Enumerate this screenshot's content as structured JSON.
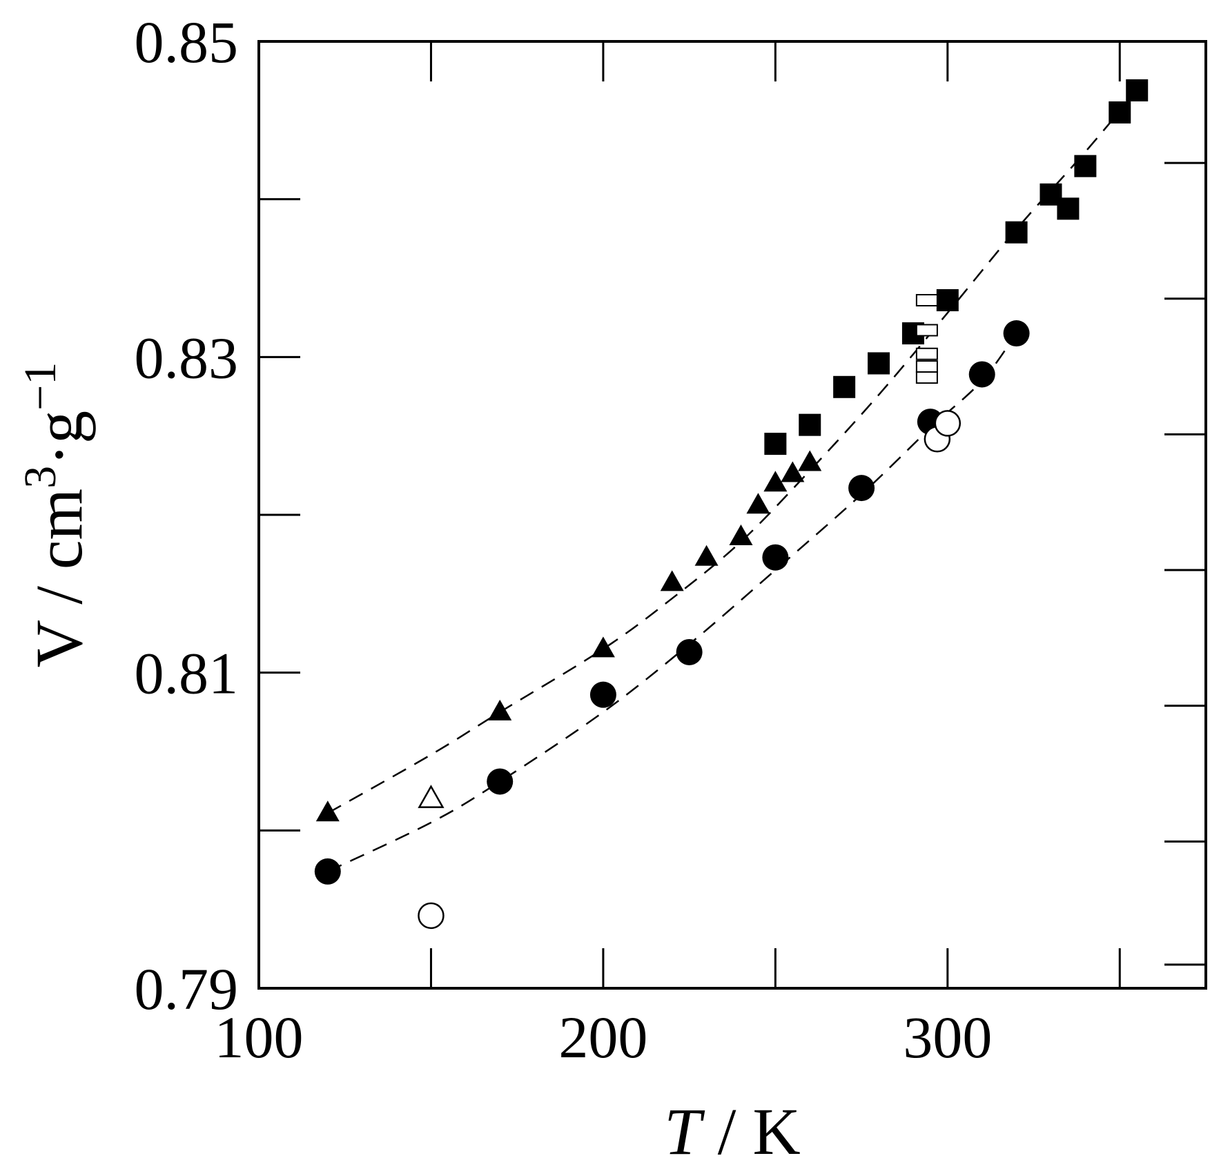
{
  "chart_data": {
    "type": "scatter",
    "title": "",
    "xlabel_italic": "T",
    "xlabel_rest": " / K",
    "ylabel_main": "V / cm",
    "ylabel_sup1": "3",
    "ylabel_mid": "·g",
    "ylabel_sup2": "−1",
    "xlim": [
      100,
      375
    ],
    "ylim": [
      0.79,
      0.85
    ],
    "x_ticks": [
      100,
      200,
      300
    ],
    "x_tick_labels": [
      "100",
      "200",
      "300"
    ],
    "x_minor_ticks": [
      150,
      250,
      350
    ],
    "y_ticks": [
      0.79,
      0.81,
      0.83,
      0.85
    ],
    "y_tick_labels": [
      "0.79",
      "0.81",
      "0.83",
      "0.85"
    ],
    "y_minor_ticks": [
      0.8,
      0.82,
      0.84
    ],
    "right_ticks": [
      0.7915,
      0.7993,
      0.8079,
      0.8165,
      0.8251,
      0.8337,
      0.8423
    ],
    "grid": false,
    "series": [
      {
        "marker": "filled-square",
        "points": [
          [
            250,
            0.8245
          ],
          [
            260,
            0.8257
          ],
          [
            270,
            0.8281
          ],
          [
            280,
            0.8296
          ],
          [
            290,
            0.8315
          ],
          [
            300,
            0.8336
          ],
          [
            320,
            0.8379
          ],
          [
            330,
            0.8403
          ],
          [
            335,
            0.8394
          ],
          [
            340,
            0.8421
          ],
          [
            350,
            0.8455
          ],
          [
            355,
            0.8469
          ]
        ]
      },
      {
        "marker": "open-square",
        "points": [
          [
            294,
            0.8336
          ],
          [
            294,
            0.8317
          ],
          [
            294,
            0.8302
          ],
          [
            294,
            0.8294
          ],
          [
            294,
            0.8287
          ]
        ]
      },
      {
        "marker": "filled-triangle",
        "points": [
          [
            120,
            0.8011
          ],
          [
            170,
            0.8075
          ],
          [
            200,
            0.8115
          ],
          [
            220,
            0.8157
          ],
          [
            230,
            0.8173
          ],
          [
            240,
            0.8186
          ],
          [
            245,
            0.8206
          ],
          [
            250,
            0.822
          ],
          [
            255,
            0.8226
          ],
          [
            260,
            0.8233
          ]
        ]
      },
      {
        "marker": "open-triangle",
        "points": [
          [
            150,
            0.802
          ]
        ]
      },
      {
        "marker": "filled-circle",
        "points": [
          [
            120,
            0.7974
          ],
          [
            170,
            0.8031
          ],
          [
            200,
            0.8086
          ],
          [
            225,
            0.8113
          ],
          [
            250,
            0.8173
          ],
          [
            275,
            0.8217
          ],
          [
            295,
            0.8259
          ],
          [
            310,
            0.8289
          ],
          [
            320,
            0.8315
          ]
        ]
      },
      {
        "marker": "open-circle",
        "points": [
          [
            150,
            0.7946
          ],
          [
            297,
            0.8248
          ],
          [
            300,
            0.8258
          ]
        ]
      }
    ],
    "dashed_fits": [
      {
        "points": [
          [
            120,
            0.8011
          ],
          [
            150,
            0.8048
          ],
          [
            170,
            0.8075
          ],
          [
            200,
            0.8115
          ],
          [
            220,
            0.8147
          ],
          [
            240,
            0.8183
          ],
          [
            260,
            0.8228
          ],
          [
            280,
            0.8276
          ],
          [
            300,
            0.8328
          ],
          [
            320,
            0.8381
          ],
          [
            340,
            0.843
          ],
          [
            355,
            0.8469
          ]
        ]
      },
      {
        "points": [
          [
            120,
            0.7974
          ],
          [
            150,
            0.8005
          ],
          [
            170,
            0.8031
          ],
          [
            200,
            0.8075
          ],
          [
            225,
            0.8118
          ],
          [
            250,
            0.8165
          ],
          [
            275,
            0.8213
          ],
          [
            295,
            0.8255
          ],
          [
            310,
            0.8285
          ],
          [
            320,
            0.8315
          ]
        ]
      }
    ]
  }
}
